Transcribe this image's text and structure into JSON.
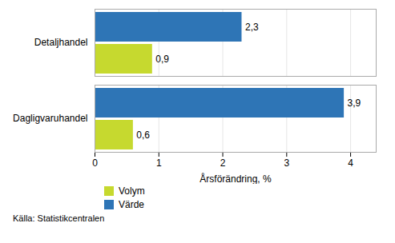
{
  "chart_data": {
    "type": "bar",
    "orientation": "horizontal",
    "categories": [
      "Dagligvaruhandel",
      "Detaljhandel"
    ],
    "series": [
      {
        "name": "Volym",
        "color": "#c6d92f",
        "values": [
          0.6,
          0.9
        ],
        "value_labels": [
          "0,6",
          "0,9"
        ]
      },
      {
        "name": "Värde",
        "color": "#2e75b6",
        "values": [
          3.9,
          2.3
        ],
        "value_labels": [
          "3,9",
          "2,3"
        ]
      }
    ],
    "xlabel": "Årsförändring, %",
    "xlim": [
      0,
      4.4
    ],
    "xticks": [
      0,
      1,
      2,
      3,
      4
    ],
    "grid": true,
    "legend": "bottom",
    "data_labels": true,
    "source": "Källa: Statistikcentralen"
  }
}
